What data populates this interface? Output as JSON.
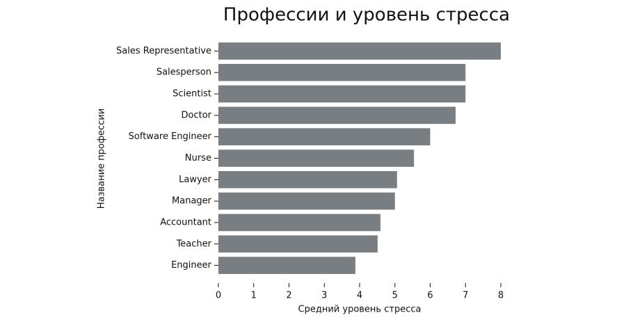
{
  "chart_data": {
    "type": "bar",
    "orientation": "horizontal",
    "title": "Профессии и уровень стресса",
    "x_label": "Средний уровень стресса",
    "y_label": "Название профессии",
    "categories": [
      "Sales Representative",
      "Salesperson",
      "Scientist",
      "Doctor",
      "Software Engineer",
      "Nurse",
      "Lawyer",
      "Manager",
      "Accountant",
      "Teacher",
      "Engineer"
    ],
    "values": [
      8.0,
      7.0,
      7.0,
      6.72,
      6.0,
      5.54,
      5.06,
      5.0,
      4.59,
      4.51,
      3.88
    ],
    "color": "#787e82",
    "xlim": [
      0,
      8
    ],
    "xticks": [
      0,
      1,
      2,
      3,
      4,
      5,
      6,
      7,
      8
    ],
    "grid": false
  }
}
